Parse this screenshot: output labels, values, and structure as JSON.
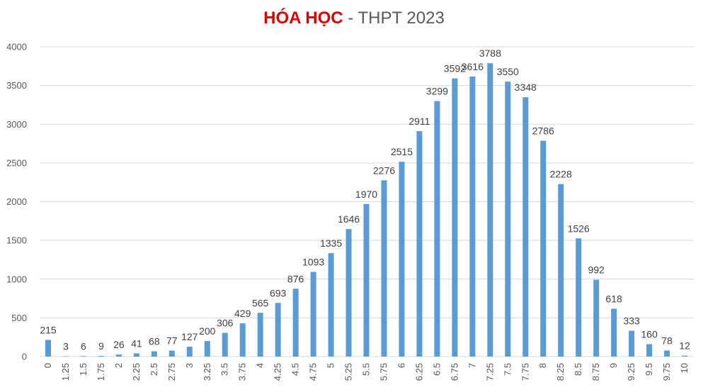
{
  "title": {
    "accent": "HÓA HỌC",
    "rest": " - THPT 2023"
  },
  "chart_data": {
    "type": "bar",
    "title": "HÓA HỌC - THPT 2023",
    "xlabel": "",
    "ylabel": "",
    "ylim": [
      0,
      4000
    ],
    "yticks": [
      0,
      500,
      1000,
      1500,
      2000,
      2500,
      3000,
      3500,
      4000
    ],
    "grid": true,
    "legend": "none",
    "categories": [
      "0",
      "1.25",
      "1.5",
      "1.75",
      "2",
      "2.25",
      "2.5",
      "2.75",
      "3",
      "3.25",
      "3.5",
      "3.75",
      "4",
      "4.25",
      "4.5",
      "4.75",
      "5",
      "5.25",
      "5.5",
      "5.75",
      "6",
      "6.25",
      "6.5",
      "6.75",
      "7",
      "7.25",
      "7.5",
      "7.75",
      "8",
      "8.25",
      "8.5",
      "8.75",
      "9",
      "9.25",
      "9.5",
      "9.75",
      "10"
    ],
    "values": [
      215,
      3,
      6,
      9,
      26,
      41,
      68,
      77,
      127,
      200,
      306,
      429,
      565,
      693,
      876,
      1093,
      1335,
      1646,
      1970,
      2276,
      2515,
      2911,
      3299,
      3592,
      3616,
      3788,
      3550,
      3348,
      2786,
      2228,
      1526,
      992,
      618,
      333,
      160,
      78,
      12
    ],
    "colors": {
      "bar": "#5b9bd5",
      "grid": "#d9d9d9",
      "accent": "#e00000"
    }
  }
}
